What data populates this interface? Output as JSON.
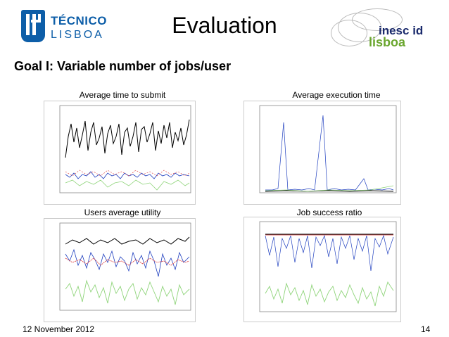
{
  "header": {
    "left_logo_name": "TÉCNICO",
    "left_logo_city": "LISBOA",
    "title": "Evaluation",
    "right_logo_inesc": "inesc id",
    "right_logo_lisboa": "lisboa"
  },
  "goal": "Goal I: Variable number of jobs/user",
  "plots": [
    {
      "label": "Average time to submit"
    },
    {
      "label": "Average execution time"
    },
    {
      "label": "Users average utility"
    },
    {
      "label": "Job success ratio"
    }
  ],
  "footer": {
    "date": "12 November 2012",
    "page": "14"
  },
  "colors": {
    "brand_blue": "#0d5ea8",
    "inesc_navy": "#1a2a6c",
    "inesc_green": "#6aa62e",
    "series_black": "#000000",
    "series_red": "#d33",
    "series_green": "#8fd47a",
    "series_blue": "#1f3fbf"
  }
}
